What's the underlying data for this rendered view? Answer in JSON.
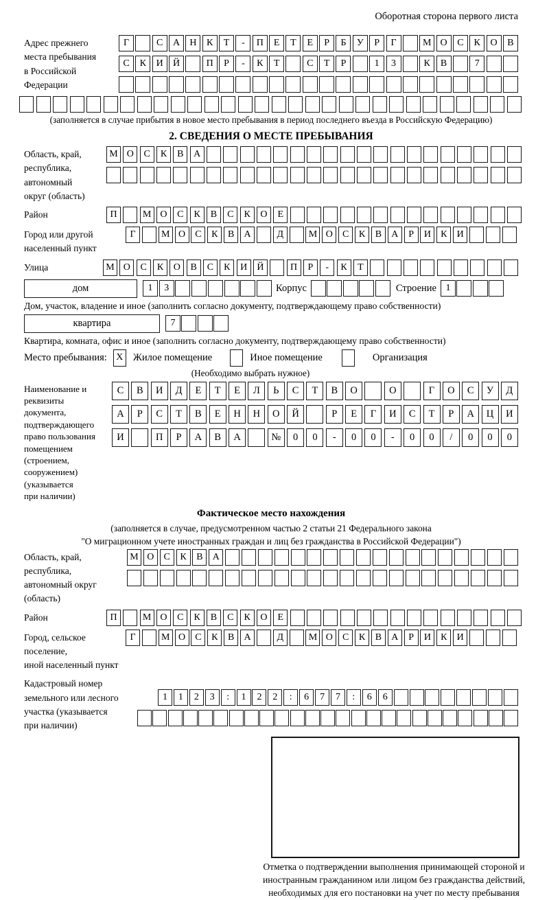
{
  "page_note": "Оборотная сторона первого листа",
  "prev_address": {
    "label": "Адрес прежнего\nместа пребывания\nв Российской\nФедерации",
    "rows": [
      {
        "t": "Г САНКТ-ПЕТЕРБУРГ МОСКОВ",
        "n": 24
      },
      {
        "t": "СКИЙ ПР-КТ СТР 13 КВ 7",
        "n": 24
      },
      {
        "t": "",
        "n": 24
      }
    ],
    "overflow_row": {
      "t": "",
      "n": 30
    },
    "footnote": "(заполняется в случае прибытия в новое место пребывания в период последнего въезда в Российскую Федерацию)"
  },
  "section2": {
    "title": "2. СВЕДЕНИЯ О МЕСТЕ ПРЕБЫВАНИЯ",
    "oblast": {
      "label": "Область, край,\nреспублика,\nавтономный\nокруг (область)",
      "rows": [
        {
          "t": "МОСКВА",
          "n": 25
        },
        {
          "t": "",
          "n": 25
        }
      ]
    },
    "raion": {
      "label": "Район",
      "row": {
        "t": "П МОСКВСКОЕ",
        "n": 25
      }
    },
    "gorod": {
      "label": "Город или другой\nнаселенный пункт",
      "row": {
        "t": "Г МОСКВА Д МОСКВАРИКИ",
        "n": 24
      }
    },
    "ulitsa": {
      "label": "Улица",
      "row": {
        "t": "МОСКОВСКИЙ ПР-КТ",
        "n": 25
      }
    },
    "dom": {
      "box_label": "дом",
      "cells": {
        "t": "13",
        "n": 8
      },
      "korpus_label": "Корпус",
      "korpus_cells": {
        "t": "",
        "n": 5
      },
      "stroenie_label": "Строение",
      "stroenie_cells": {
        "t": "1",
        "n": 4
      }
    },
    "dom_note": "Дом, участок, владение и иное (заполнить согласно документу, подтверждающему право собственности)",
    "kvartira": {
      "box_label": "квартира",
      "cells": {
        "t": "7",
        "n": 4
      }
    },
    "kvartira_note": "Квартира, комната, офис и иное (заполнить согласно документу, подтверждающему право собственности)",
    "mesto": {
      "label": "Место пребывания:",
      "options": [
        {
          "mark": "X",
          "label": "Жилое помещение"
        },
        {
          "mark": "",
          "label": "Иное помещение"
        },
        {
          "mark": "",
          "label": "Организация"
        }
      ],
      "note": "(Необходимо выбрать нужное)"
    },
    "document": {
      "label": "Наименование и реквизиты\nдокумента, подтверждающего\nправо пользования\nпомещением (строением,\nсооружением) (указывается\nпри наличии)",
      "rows": [
        {
          "t": "СВИДЕТЕЛЬСТВО О ГОСУД",
          "n": 21
        },
        {
          "t": "АРСТВЕННОЙ РЕГИСТРАЦИ",
          "n": 21
        },
        {
          "t": "И ПРАВА №00-00-00/000",
          "n": 21
        }
      ]
    }
  },
  "fact_location": {
    "title": "Фактическое место нахождения",
    "note_line1": "(заполняется в случае, предусмотренном частью 2 статьи 21 Федерального закона",
    "note_line2": "\"О миграционном учете иностранных граждан и лиц без гражданства в Российской Федерации\")",
    "oblast": {
      "label": "Область, край,\nреспублика,\nавтономный округ\n(область)",
      "rows": [
        {
          "t": "МОСКВА",
          "n": 24
        },
        {
          "t": "",
          "n": 24
        }
      ]
    },
    "raion": {
      "label": "Район",
      "row": {
        "t": "П МОСКВСКОЕ",
        "n": 25
      }
    },
    "gorod": {
      "label": "Город, сельское поселение,\nиной населенный пункт",
      "row": {
        "t": "Г МОСКВА Д МОСКВАРИКИ",
        "n": 24
      }
    },
    "kadastr": {
      "label": "Кадастровый номер\nземельного или лесного\nучастка (указывается\nпри наличии)",
      "rows": [
        {
          "t": "1123:122:677:66",
          "n": 23
        },
        {
          "t": "",
          "n": 25
        }
      ]
    }
  },
  "stamp": {
    "caption": "Отметка о подтверждении выполнения принимающей стороной и иностранным гражданином или лицом без гражданства действий, необходимых для его постановки на учет по месту пребывания"
  }
}
